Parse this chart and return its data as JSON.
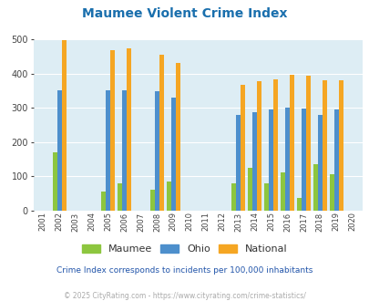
{
  "title": "Maumee Violent Crime Index",
  "title_color": "#1a6fad",
  "years": [
    2001,
    2002,
    2003,
    2004,
    2005,
    2006,
    2007,
    2008,
    2009,
    2010,
    2011,
    2012,
    2013,
    2014,
    2015,
    2016,
    2017,
    2018,
    2019,
    2020
  ],
  "maumee": [
    0,
    170,
    0,
    0,
    57,
    80,
    0,
    62,
    85,
    0,
    0,
    0,
    80,
    125,
    80,
    112,
    38,
    135,
    105,
    0
  ],
  "ohio": [
    0,
    350,
    0,
    0,
    350,
    350,
    0,
    347,
    330,
    0,
    0,
    0,
    278,
    288,
    295,
    300,
    298,
    280,
    295,
    0
  ],
  "national": [
    0,
    497,
    0,
    0,
    469,
    473,
    0,
    454,
    431,
    0,
    0,
    0,
    367,
    378,
    383,
    395,
    394,
    381,
    381,
    0
  ],
  "maumee_color": "#8dc63f",
  "ohio_color": "#4d8fcc",
  "national_color": "#f5a623",
  "plot_bg_color": "#ddedf4",
  "ylim": [
    0,
    500
  ],
  "yticks": [
    0,
    100,
    200,
    300,
    400,
    500
  ],
  "subtitle": "Crime Index corresponds to incidents per 100,000 inhabitants",
  "subtitle_color": "#2255aa",
  "footer": "© 2025 CityRating.com - https://www.cityrating.com/crime-statistics/",
  "footer_color": "#aaaaaa",
  "grid_color": "#ffffff",
  "bar_width": 0.28
}
